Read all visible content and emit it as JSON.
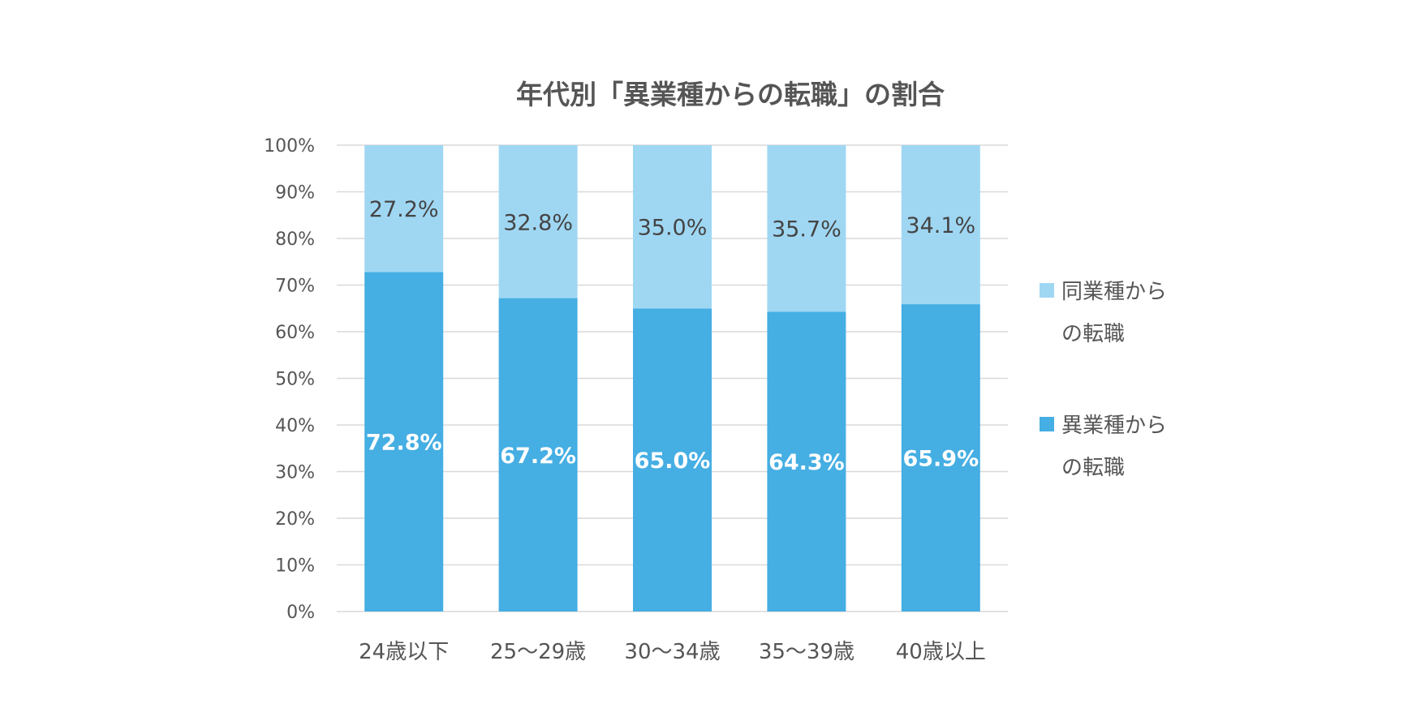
{
  "chart_data": {
    "type": "bar",
    "stacked": true,
    "title": "年代別「異業種からの転職」の割合",
    "categories": [
      "24歳以下",
      "25～29歳",
      "30～34歳",
      "35～39歳",
      "40歳以上"
    ],
    "series": [
      {
        "name": "異業種からの転職",
        "legend_lines": [
          "異業種から",
          "の転職"
        ],
        "values": [
          72.8,
          67.2,
          65.0,
          64.3,
          65.9
        ],
        "labels": [
          "72.8%",
          "67.2%",
          "65.0%",
          "64.3%",
          "65.9%"
        ],
        "color": "#45aee3"
      },
      {
        "name": "同業種からの転職",
        "legend_lines": [
          "同業種から",
          "の転職"
        ],
        "values": [
          27.2,
          32.8,
          35.0,
          35.7,
          34.1
        ],
        "labels": [
          "27.2%",
          "32.8%",
          "35.0%",
          "35.7%",
          "34.1%"
        ],
        "color": "#9fd7f3"
      }
    ],
    "y_ticks": [
      "0%",
      "10%",
      "20%",
      "30%",
      "40%",
      "50%",
      "60%",
      "70%",
      "80%",
      "90%",
      "100%"
    ],
    "ylim": [
      0,
      100
    ],
    "grid": true,
    "legend_position": "right"
  }
}
